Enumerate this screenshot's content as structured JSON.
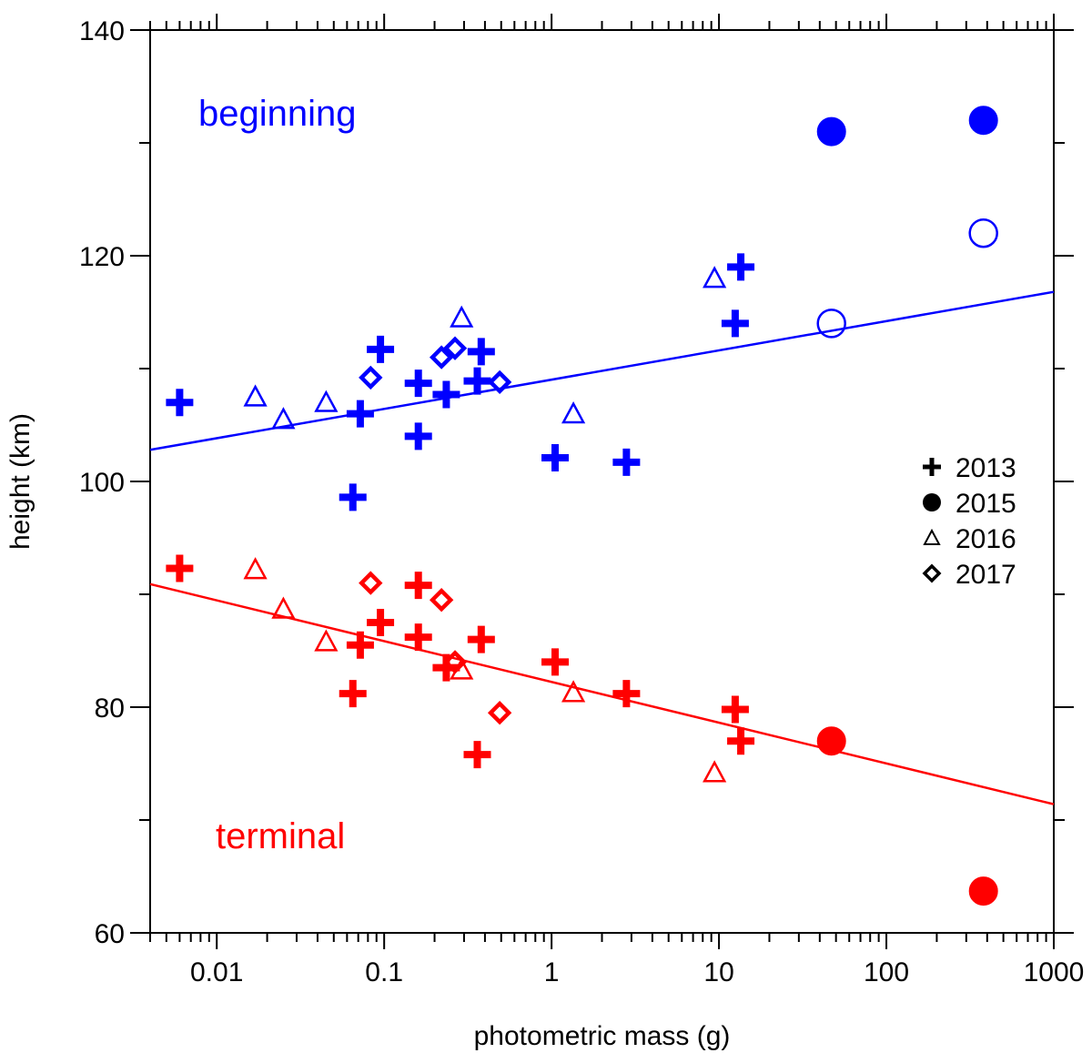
{
  "chart_data": {
    "type": "scatter",
    "title": "",
    "xlabel": "photometric mass (g)",
    "ylabel": "height (km)",
    "xscale": "log",
    "xlim": [
      0.004,
      1000
    ],
    "ylim": [
      60,
      140
    ],
    "x_tick_values": [
      0.01,
      0.1,
      1,
      10,
      100,
      1000
    ],
    "x_tick_labels": [
      "0.01",
      "0.1",
      "1",
      "10",
      "100",
      "1000"
    ],
    "y_tick_values": [
      60,
      80,
      100,
      120,
      140
    ],
    "y_tick_labels": [
      "60",
      "80",
      "100",
      "120",
      "140"
    ],
    "annotations": [
      {
        "name": "beginning-label",
        "text": "beginning",
        "color": "#0000ff"
      },
      {
        "name": "terminal-label",
        "text": "terminal",
        "color": "#ff0000"
      }
    ],
    "legend": {
      "position": "right",
      "entries": [
        {
          "label": "2013",
          "marker": "plus"
        },
        {
          "label": "2015",
          "marker": "circle-filled"
        },
        {
          "label": "2016",
          "marker": "triangle-open"
        },
        {
          "label": "2017",
          "marker": "diamond-open"
        }
      ]
    },
    "colors": {
      "beginning": "#0000ff",
      "terminal": "#ff0000",
      "axis": "#000000"
    },
    "fit_lines": [
      {
        "name": "beginning-fit",
        "group": "beginning",
        "x": [
          0.004,
          1000
        ],
        "y": [
          102.8,
          116.8
        ]
      },
      {
        "name": "terminal-fit",
        "group": "terminal",
        "x": [
          0.004,
          1000
        ],
        "y": [
          90.9,
          71.4
        ]
      }
    ],
    "series": [
      {
        "name": "2013 beginning",
        "group": "beginning",
        "marker": "plus",
        "x": [
          0.006,
          0.065,
          0.072,
          0.095,
          0.16,
          0.16,
          0.235,
          0.36,
          0.38,
          1.05,
          2.8,
          12.5,
          13.5
        ],
        "y": [
          107,
          98.6,
          106,
          111.7,
          104,
          108.7,
          107.7,
          108.9,
          111.5,
          102.1,
          101.7,
          114,
          119
        ]
      },
      {
        "name": "2015 beginning",
        "group": "beginning",
        "marker": "circle-filled",
        "x": [
          47,
          380
        ],
        "y": [
          131,
          132
        ]
      },
      {
        "name": "2015 beginning (open)",
        "group": "beginning",
        "marker": "circle-open",
        "x": [
          47,
          380
        ],
        "y": [
          114,
          122
        ]
      },
      {
        "name": "2016 beginning",
        "group": "beginning",
        "marker": "triangle-open",
        "x": [
          0.017,
          0.025,
          0.045,
          0.29,
          1.35,
          9.4
        ],
        "y": [
          107.5,
          105.5,
          107,
          114.5,
          106,
          118
        ]
      },
      {
        "name": "2017 beginning",
        "group": "beginning",
        "marker": "diamond-open",
        "x": [
          0.083,
          0.22,
          0.265,
          0.49
        ],
        "y": [
          109.2,
          111,
          111.8,
          108.8
        ]
      },
      {
        "name": "2013 terminal",
        "group": "terminal",
        "marker": "plus",
        "x": [
          0.006,
          0.065,
          0.072,
          0.095,
          0.16,
          0.16,
          0.235,
          0.36,
          0.38,
          1.05,
          2.8,
          12.5,
          13.5
        ],
        "y": [
          92.3,
          81.2,
          85.5,
          87.5,
          86.2,
          90.8,
          83.5,
          75.8,
          86,
          84,
          81.2,
          79.8,
          77
        ]
      },
      {
        "name": "2015 terminal",
        "group": "terminal",
        "marker": "circle-filled",
        "x": [
          47,
          380
        ],
        "y": [
          77,
          63.7
        ]
      },
      {
        "name": "2016 terminal",
        "group": "terminal",
        "marker": "triangle-open",
        "x": [
          0.017,
          0.025,
          0.045,
          0.29,
          1.35,
          9.4
        ],
        "y": [
          92.2,
          88.7,
          85.8,
          83.3,
          81.3,
          74.2
        ]
      },
      {
        "name": "2017 terminal",
        "group": "terminal",
        "marker": "diamond-open",
        "x": [
          0.083,
          0.22,
          0.265,
          0.49
        ],
        "y": [
          91,
          89.5,
          84,
          79.5
        ]
      }
    ]
  }
}
